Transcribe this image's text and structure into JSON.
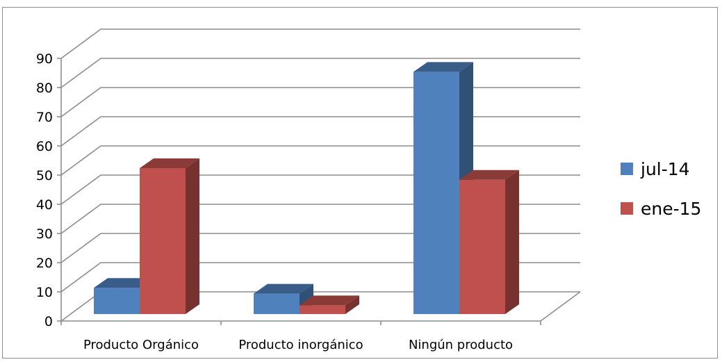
{
  "chart_data": {
    "type": "bar",
    "categories": [
      "Producto Orgánico",
      "Producto inorgánico",
      "Ningún producto"
    ],
    "series": [
      {
        "name": "jul-14",
        "values": [
          9,
          7,
          83
        ],
        "color": "#4f81bd"
      },
      {
        "name": "ene-15",
        "values": [
          50,
          3,
          46
        ],
        "color": "#c0504d"
      }
    ],
    "ylim": [
      0,
      90
    ],
    "yticks": [
      "0",
      "10",
      "20",
      "30",
      "40",
      "50",
      "60",
      "70",
      "80",
      "90"
    ],
    "grid": true,
    "legend_position": "right",
    "style": "3d-clustered-column"
  }
}
